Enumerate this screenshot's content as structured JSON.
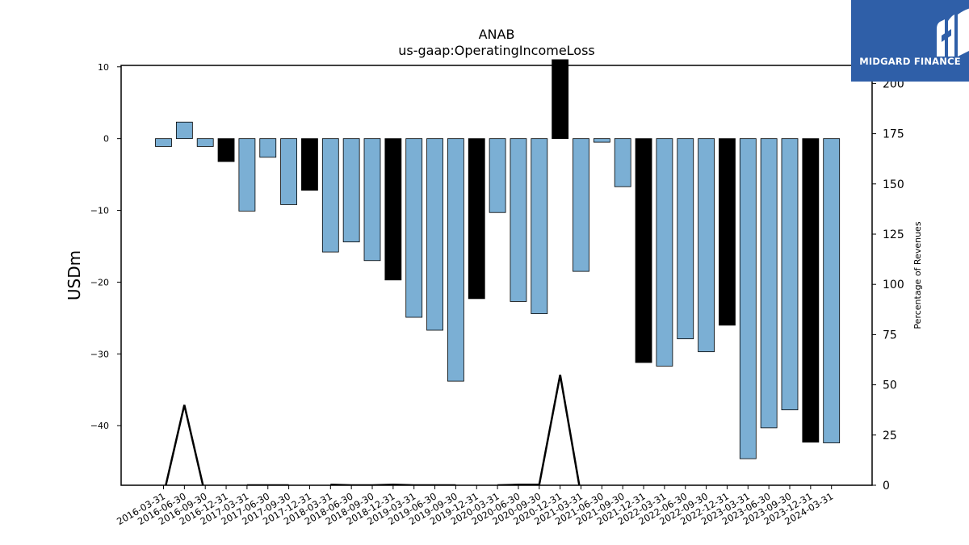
{
  "chart_data": {
    "type": "bar",
    "title": "ANAB",
    "subtitle": "us-gaap:OperatingIncomeLoss",
    "ylabel": "USDm",
    "y2label": "Percentage of Revenues",
    "categories": [
      "2016-03-31",
      "2016-06-30",
      "2016-09-30",
      "2016-12-31",
      "2017-03-31",
      "2017-06-30",
      "2017-09-30",
      "2017-12-31",
      "2018-03-31",
      "2018-06-30",
      "2018-09-30",
      "2018-12-31",
      "2019-03-31",
      "2019-06-30",
      "2019-09-30",
      "2019-12-31",
      "2020-03-31",
      "2020-06-30",
      "2020-09-30",
      "2020-12-31",
      "2021-03-31",
      "2021-06-30",
      "2021-09-30",
      "2021-12-31",
      "2022-03-31",
      "2022-06-30",
      "2022-09-30",
      "2022-12-31",
      "2023-03-31",
      "2023-06-30",
      "2023-09-30",
      "2023-12-31",
      "2024-03-31"
    ],
    "series": [
      {
        "values": [
          -1.1,
          2.3,
          -1.1,
          -3.2,
          -10.1,
          -2.6,
          -9.2,
          -7.2,
          -15.8,
          -14.4,
          -17.0,
          -19.7,
          -24.9,
          -26.7,
          -33.8,
          -22.3,
          -10.3,
          -22.7,
          -24.4,
          11.0,
          -18.5,
          -0.5,
          -6.7,
          -31.2,
          -31.7,
          -27.9,
          -29.7,
          -26.0,
          -44.6,
          -40.3,
          -37.8,
          -42.3,
          -42.4
        ],
        "quarter_type": [
          "q",
          "q",
          "q",
          "fy",
          "q",
          "q",
          "q",
          "fy",
          "q",
          "q",
          "q",
          "fy",
          "q",
          "q",
          "q",
          "fy",
          "q",
          "q",
          "q",
          "fy",
          "q",
          "q",
          "q",
          "fy",
          "q",
          "q",
          "q",
          "fy",
          "q",
          "q",
          "q",
          "fy",
          "q"
        ]
      },
      {
        "axis": "right",
        "type": "line",
        "values": [
          -5,
          40,
          -5,
          null,
          0,
          0,
          0,
          null,
          0.3,
          0,
          0,
          0.3,
          0,
          0,
          0,
          null,
          0,
          0.3,
          0.3,
          55,
          -5,
          null,
          null,
          null,
          null,
          null,
          null,
          null,
          null,
          null,
          null,
          null,
          null
        ]
      }
    ],
    "ylim": [
      -48.3,
      10.2
    ],
    "yticks": [
      10,
      0,
      -10,
      -20,
      -30,
      -40
    ],
    "y2lim": [
      0,
      209
    ],
    "y2ticks": [
      0,
      25,
      50,
      75,
      100,
      125,
      150,
      175,
      200
    ],
    "colors": {
      "quarter": "#7bafd4",
      "fiscal_year": "#000000",
      "line": "#000000"
    },
    "grid": false
  },
  "logo": {
    "text": "MIDGARD FINANCE"
  }
}
